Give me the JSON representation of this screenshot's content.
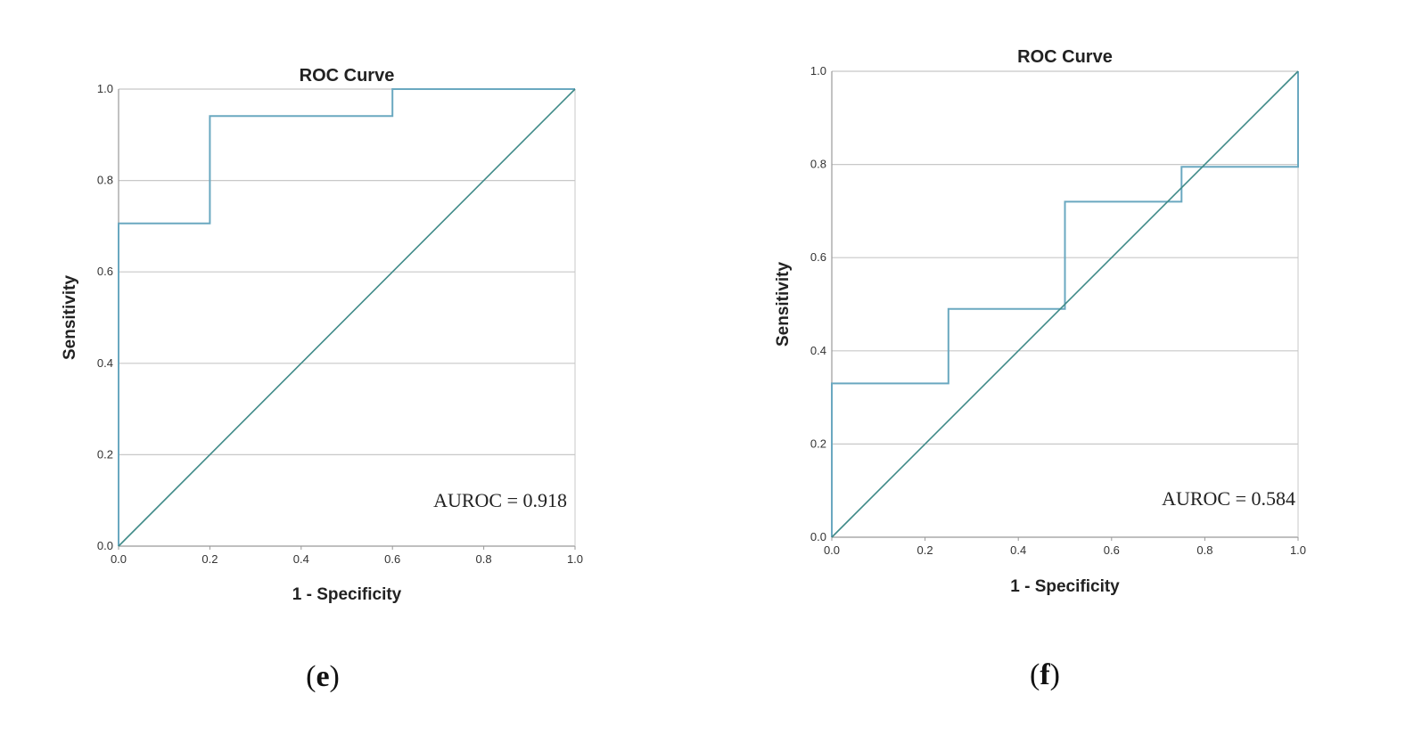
{
  "colors": {
    "curve": "#6aa8c0",
    "reference": "#3f8a88",
    "grid": "#c8c8c8",
    "axis": "#999999"
  },
  "chart_data": [
    {
      "type": "line",
      "panel": "e",
      "title": "ROC Curve",
      "xlabel": "1 - Specificity",
      "ylabel": "Sensitivity",
      "xlim": [
        0,
        1
      ],
      "ylim": [
        0,
        1
      ],
      "xticks": [
        "0.0",
        "0.2",
        "0.4",
        "0.6",
        "0.8",
        "1.0"
      ],
      "yticks": [
        "0.0",
        "0.2",
        "0.4",
        "0.6",
        "0.8",
        "1.0"
      ],
      "grid": "horizontal",
      "annotation": "AUROC = 0.918",
      "panel_label": {
        "open": "(",
        "letter": "e",
        "close": ")"
      },
      "series": [
        {
          "name": "ROC",
          "x": [
            0,
            0,
            0.2,
            0.2,
            0.6,
            0.6,
            1.0
          ],
          "y": [
            0,
            0.706,
            0.706,
            0.941,
            0.941,
            1.0,
            1.0
          ]
        },
        {
          "name": "Reference line",
          "x": [
            0,
            1
          ],
          "y": [
            0,
            1
          ]
        }
      ]
    },
    {
      "type": "line",
      "panel": "f",
      "title": "ROC Curve",
      "xlabel": "1 - Specificity",
      "ylabel": "Sensitivity",
      "xlim": [
        0,
        1
      ],
      "ylim": [
        0,
        1
      ],
      "xticks": [
        "0.0",
        "0.2",
        "0.4",
        "0.6",
        "0.8",
        "1.0"
      ],
      "yticks": [
        "0.0",
        "0.2",
        "0.4",
        "0.6",
        "0.8",
        "1.0"
      ],
      "grid": "horizontal",
      "annotation": "AUROC = 0.584",
      "panel_label": {
        "open": "(",
        "letter": "f",
        "close": ")"
      },
      "series": [
        {
          "name": "ROC",
          "x": [
            0,
            0,
            0.25,
            0.25,
            0.5,
            0.5,
            0.75,
            0.75,
            1.0,
            1.0
          ],
          "y": [
            0,
            0.33,
            0.33,
            0.49,
            0.49,
            0.72,
            0.72,
            0.795,
            0.795,
            1.0
          ]
        },
        {
          "name": "Reference line",
          "x": [
            0,
            1
          ],
          "y": [
            0,
            1
          ]
        }
      ]
    }
  ]
}
